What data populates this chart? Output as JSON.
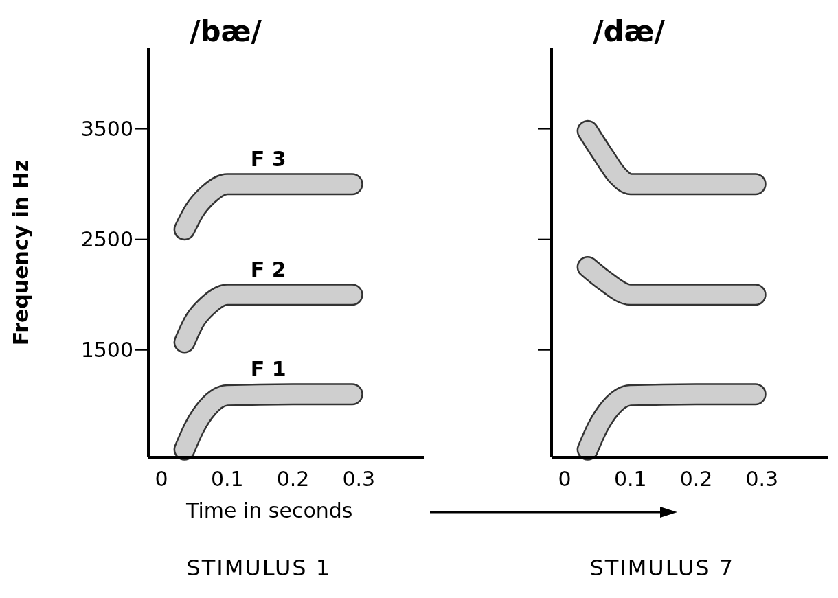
{
  "chart_data": [
    {
      "type": "line",
      "title": "/bæ/",
      "subtitle": "STIMULUS 1",
      "xlabel": "Time in seconds",
      "ylabel": "Frequency in Hz",
      "xlim": [
        -0.02,
        0.4
      ],
      "xticks": [
        0,
        0.1,
        0.2,
        0.3
      ],
      "ylim": [
        530,
        4230
      ],
      "yticks": [
        1500,
        2500,
        3500
      ],
      "grid": false,
      "series": [
        {
          "name": "F 1",
          "color": "#cfcfcf",
          "x": [
            0.035,
            0.05,
            0.07,
            0.1,
            0.2,
            0.29
          ],
          "values": [
            600,
            800,
            980,
            1090,
            1100,
            1100
          ]
        },
        {
          "name": "F 2",
          "color": "#cfcfcf",
          "x": [
            0.035,
            0.05,
            0.07,
            0.1,
            0.2,
            0.29
          ],
          "values": [
            1570,
            1760,
            1900,
            2000,
            2000,
            2000
          ]
        },
        {
          "name": "F 3",
          "color": "#cfcfcf",
          "x": [
            0.035,
            0.05,
            0.07,
            0.1,
            0.2,
            0.29
          ],
          "values": [
            2590,
            2760,
            2900,
            3000,
            3000,
            3000
          ]
        }
      ]
    },
    {
      "type": "line",
      "title": "/dæ/",
      "subtitle": "STIMULUS 7",
      "xlim": [
        -0.02,
        0.4
      ],
      "xticks": [
        0,
        0.1,
        0.2,
        0.3
      ],
      "ylim": [
        530,
        4230
      ],
      "yticks": [
        1500,
        2500,
        3500
      ],
      "tick_labels": "x",
      "grid": false,
      "series": [
        {
          "color": "#cfcfcf",
          "x": [
            0.035,
            0.05,
            0.07,
            0.1,
            0.2,
            0.29
          ],
          "values": [
            600,
            800,
            980,
            1090,
            1100,
            1100
          ]
        },
        {
          "color": "#cfcfcf",
          "x": [
            0.035,
            0.06,
            0.1,
            0.2,
            0.29
          ],
          "values": [
            2250,
            2130,
            2000,
            2000,
            2000
          ]
        },
        {
          "color": "#cfcfcf",
          "x": [
            0.035,
            0.06,
            0.08,
            0.1,
            0.2,
            0.29
          ],
          "values": [
            3480,
            3250,
            3080,
            3000,
            3000,
            3000
          ]
        }
      ]
    }
  ]
}
